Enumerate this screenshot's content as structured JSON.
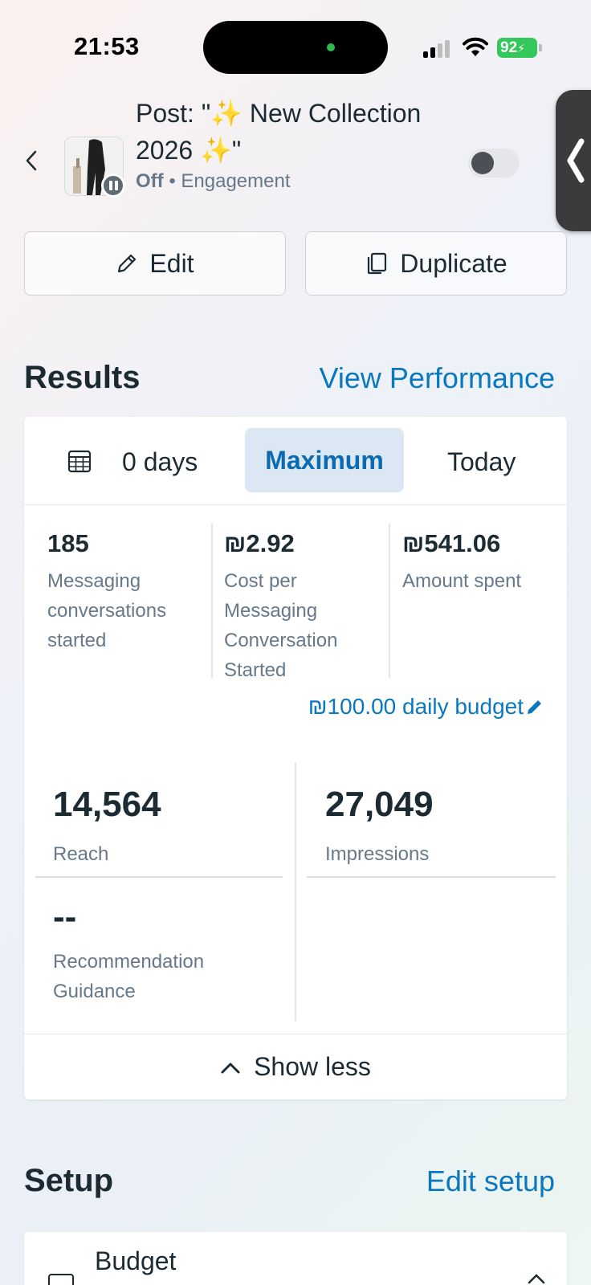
{
  "status_bar": {
    "time": "21:53",
    "battery": "92"
  },
  "header": {
    "title": "Post: \"✨ New Collection 2026 ✨\"",
    "status": "Off",
    "separator": "•",
    "objective": "Engagement",
    "toggle_on": false
  },
  "actions": {
    "edit_label": "Edit",
    "duplicate_label": "Duplicate"
  },
  "results": {
    "title": "Results",
    "link": "View Performance",
    "range": {
      "days": "0 days",
      "maximum": "Maximum",
      "today": "Today"
    },
    "metrics": [
      {
        "value": "185",
        "label": "Messaging conversations started"
      },
      {
        "value": "₪2.92",
        "label": "Cost per Messaging Conversation Started"
      },
      {
        "value": "₪541.06",
        "label": "Amount spent"
      }
    ],
    "daily_budget": "₪100.00 daily budget",
    "reach": {
      "value": "14,564",
      "label": "Reach"
    },
    "impressions": {
      "value": "27,049",
      "label": "Impressions"
    },
    "recommendation": {
      "value": "--",
      "label": "Recommendation Guidance"
    },
    "show_less": "Show less"
  },
  "setup": {
    "title": "Setup",
    "link": "Edit setup",
    "budget_label": "Budget"
  },
  "colors": {
    "accent": "#0a78be",
    "text": "#1c2b33",
    "muted": "#67788a",
    "pill": "#dbe8f4"
  }
}
